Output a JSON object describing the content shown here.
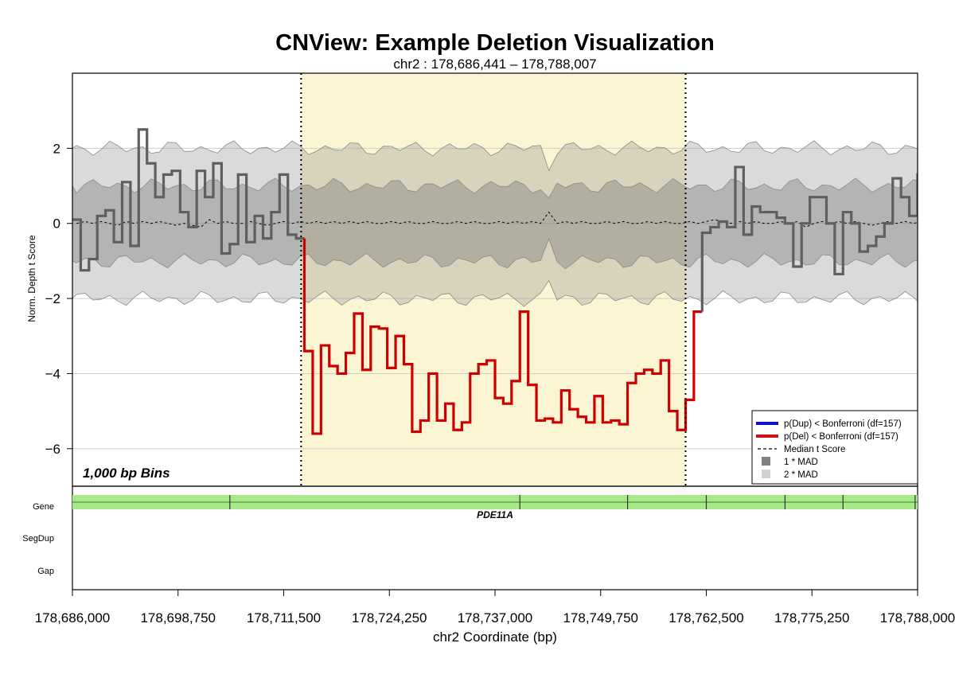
{
  "chart_data": {
    "type": "line",
    "title": "CNView: Example Deletion Visualization",
    "subtitle": "chr2 : 178,686,441 – 178,788,007",
    "xlabel": "chr2 Coordinate (bp)",
    "ylabel": "Norm. Depth t Score",
    "bin_label": "1,000 bp Bins",
    "xlim": [
      178686000,
      178788000
    ],
    "ylim": [
      -7,
      4
    ],
    "x_ticks": [
      178686000,
      178698750,
      178711500,
      178724250,
      178737000,
      178749750,
      178762500,
      178775250,
      178788000
    ],
    "x_tick_labels": [
      "178,686,000",
      "178,698,750",
      "178,711,500",
      "178,724,250",
      "178,737,000",
      "178,749,750",
      "178,762,500",
      "178,775,250",
      "178,788,000"
    ],
    "y_ticks": [
      2,
      0,
      -2,
      -4,
      -6
    ],
    "y_tick_labels": [
      "2",
      "0",
      "−2",
      "−4",
      "−6"
    ],
    "highlight_region": {
      "start": 178713600,
      "end": 178760000,
      "color": "#fbf5d3"
    },
    "bin_start": 178686000,
    "bin_size": 1000,
    "series": [
      {
        "name": "Sample t score",
        "values": [
          0.1,
          -1.25,
          -0.95,
          0.2,
          0.35,
          -0.5,
          1.1,
          -0.6,
          2.5,
          1.6,
          0.7,
          1.3,
          1.4,
          0.3,
          -0.1,
          1.4,
          0.7,
          1.6,
          -0.8,
          -0.55,
          1.3,
          -0.5,
          0.2,
          -0.4,
          0.3,
          1.3,
          -0.3,
          -0.4,
          -3.4,
          -5.6,
          -3.25,
          -3.8,
          -4.0,
          -3.45,
          -2.4,
          -3.9,
          -2.75,
          -2.8,
          -3.85,
          -3.0,
          -3.75,
          -5.55,
          -5.25,
          -4.0,
          -5.25,
          -4.8,
          -5.5,
          -5.3,
          -4.0,
          -3.75,
          -3.65,
          -4.65,
          -4.8,
          -4.2,
          -2.35,
          -4.3,
          -5.25,
          -5.2,
          -5.3,
          -4.45,
          -4.95,
          -5.15,
          -5.3,
          -4.6,
          -5.3,
          -5.25,
          -5.35,
          -4.25,
          -4.0,
          -3.9,
          -4.0,
          -3.65,
          -5.0,
          -5.5,
          -4.7,
          -2.35,
          -0.25,
          -0.1,
          0.05,
          -0.1,
          1.5,
          -0.3,
          0.45,
          0.3,
          0.3,
          0.15,
          0.0,
          -1.15,
          0.0,
          0.7,
          0.7,
          0.0,
          -1.35,
          0.3,
          0.0,
          -0.75,
          -0.6,
          -0.35,
          0.0,
          1.2,
          0.7,
          0.2,
          1.3,
          0.2,
          0.8,
          1.25,
          -0.4,
          -0.25,
          -0.4
        ]
      },
      {
        "name": "Median t Score",
        "values": [
          0.0,
          0.05,
          0.0,
          0.05,
          0.0,
          -0.05,
          0.05,
          0.0,
          0.05,
          0.0,
          0.05,
          0.0,
          -0.05,
          0.0,
          -0.05,
          -0.1,
          0.1,
          0.0,
          0.05,
          0.0,
          0.0,
          0.05,
          0.0,
          -0.05,
          0.0,
          0.05,
          0.0,
          0.05,
          0.0,
          0.05,
          0.0,
          0.05,
          0.0,
          0.05,
          0.0,
          0.05,
          0.0,
          0.0,
          0.05,
          0.0,
          0.05,
          0.0,
          0.0,
          0.05,
          0.0,
          0.0,
          0.05,
          0.0,
          0.05,
          0.0,
          0.0,
          0.05,
          0.0,
          0.05,
          0.0,
          0.05,
          0.0,
          0.3,
          0.0,
          0.05,
          0.0,
          0.05,
          0.0,
          0.0,
          0.05,
          0.0,
          0.05,
          0.0,
          0.0,
          0.05,
          0.0,
          0.05,
          0.0,
          0.0,
          0.05,
          0.0,
          0.05,
          0.1,
          0.05,
          0.0,
          0.05,
          0.0,
          0.05,
          0.0,
          0.0,
          0.05,
          0.0,
          0.05,
          -0.1,
          0.0,
          0.05,
          0.0,
          0.05,
          0.0,
          0.05,
          0.0,
          -0.05,
          0.0,
          0.05,
          0.0,
          0.05,
          0.0,
          0.05,
          0.0,
          0.05,
          0.05,
          0.0,
          -0.05,
          0.0
        ]
      }
    ],
    "mad_bands": {
      "one_mad": {
        "upper": 1.0,
        "lower": -1.0,
        "color": "#a8a8a8"
      },
      "two_mad": {
        "upper": 2.0,
        "lower": -2.0,
        "color": "#d8d8d8"
      },
      "dip_bin": 57
    },
    "del_threshold": -2.0,
    "gene": {
      "name": "PDE11A",
      "start": 178686000,
      "end": 178788000,
      "exon_ticks": [
        178705000,
        178740000,
        178753000,
        178762500,
        178772000,
        178779000,
        178787700
      ]
    },
    "tracks": [
      "Gene",
      "SegDup",
      "Gap"
    ],
    "legend": {
      "position": "bottom-right",
      "items": [
        {
          "label": "p(Dup) < Bonferroni (df=157)",
          "color": "#1010d0",
          "style": "line"
        },
        {
          "label": "p(Del) < Bonferroni (df=157)",
          "color": "#d01010",
          "style": "line"
        },
        {
          "label": "Median t Score",
          "color": "#000000",
          "style": "dash"
        },
        {
          "label": "1 * MAD",
          "color": "#808080",
          "style": "box"
        },
        {
          "label": "2 * MAD",
          "color": "#d0d0d0",
          "style": "box"
        }
      ]
    },
    "colors": {
      "normal": "#5f5f5f",
      "del": "#cc0000",
      "dup": "#1010d0",
      "gene_bar": "#a8e88a",
      "gene_edge": "#40a030"
    }
  }
}
